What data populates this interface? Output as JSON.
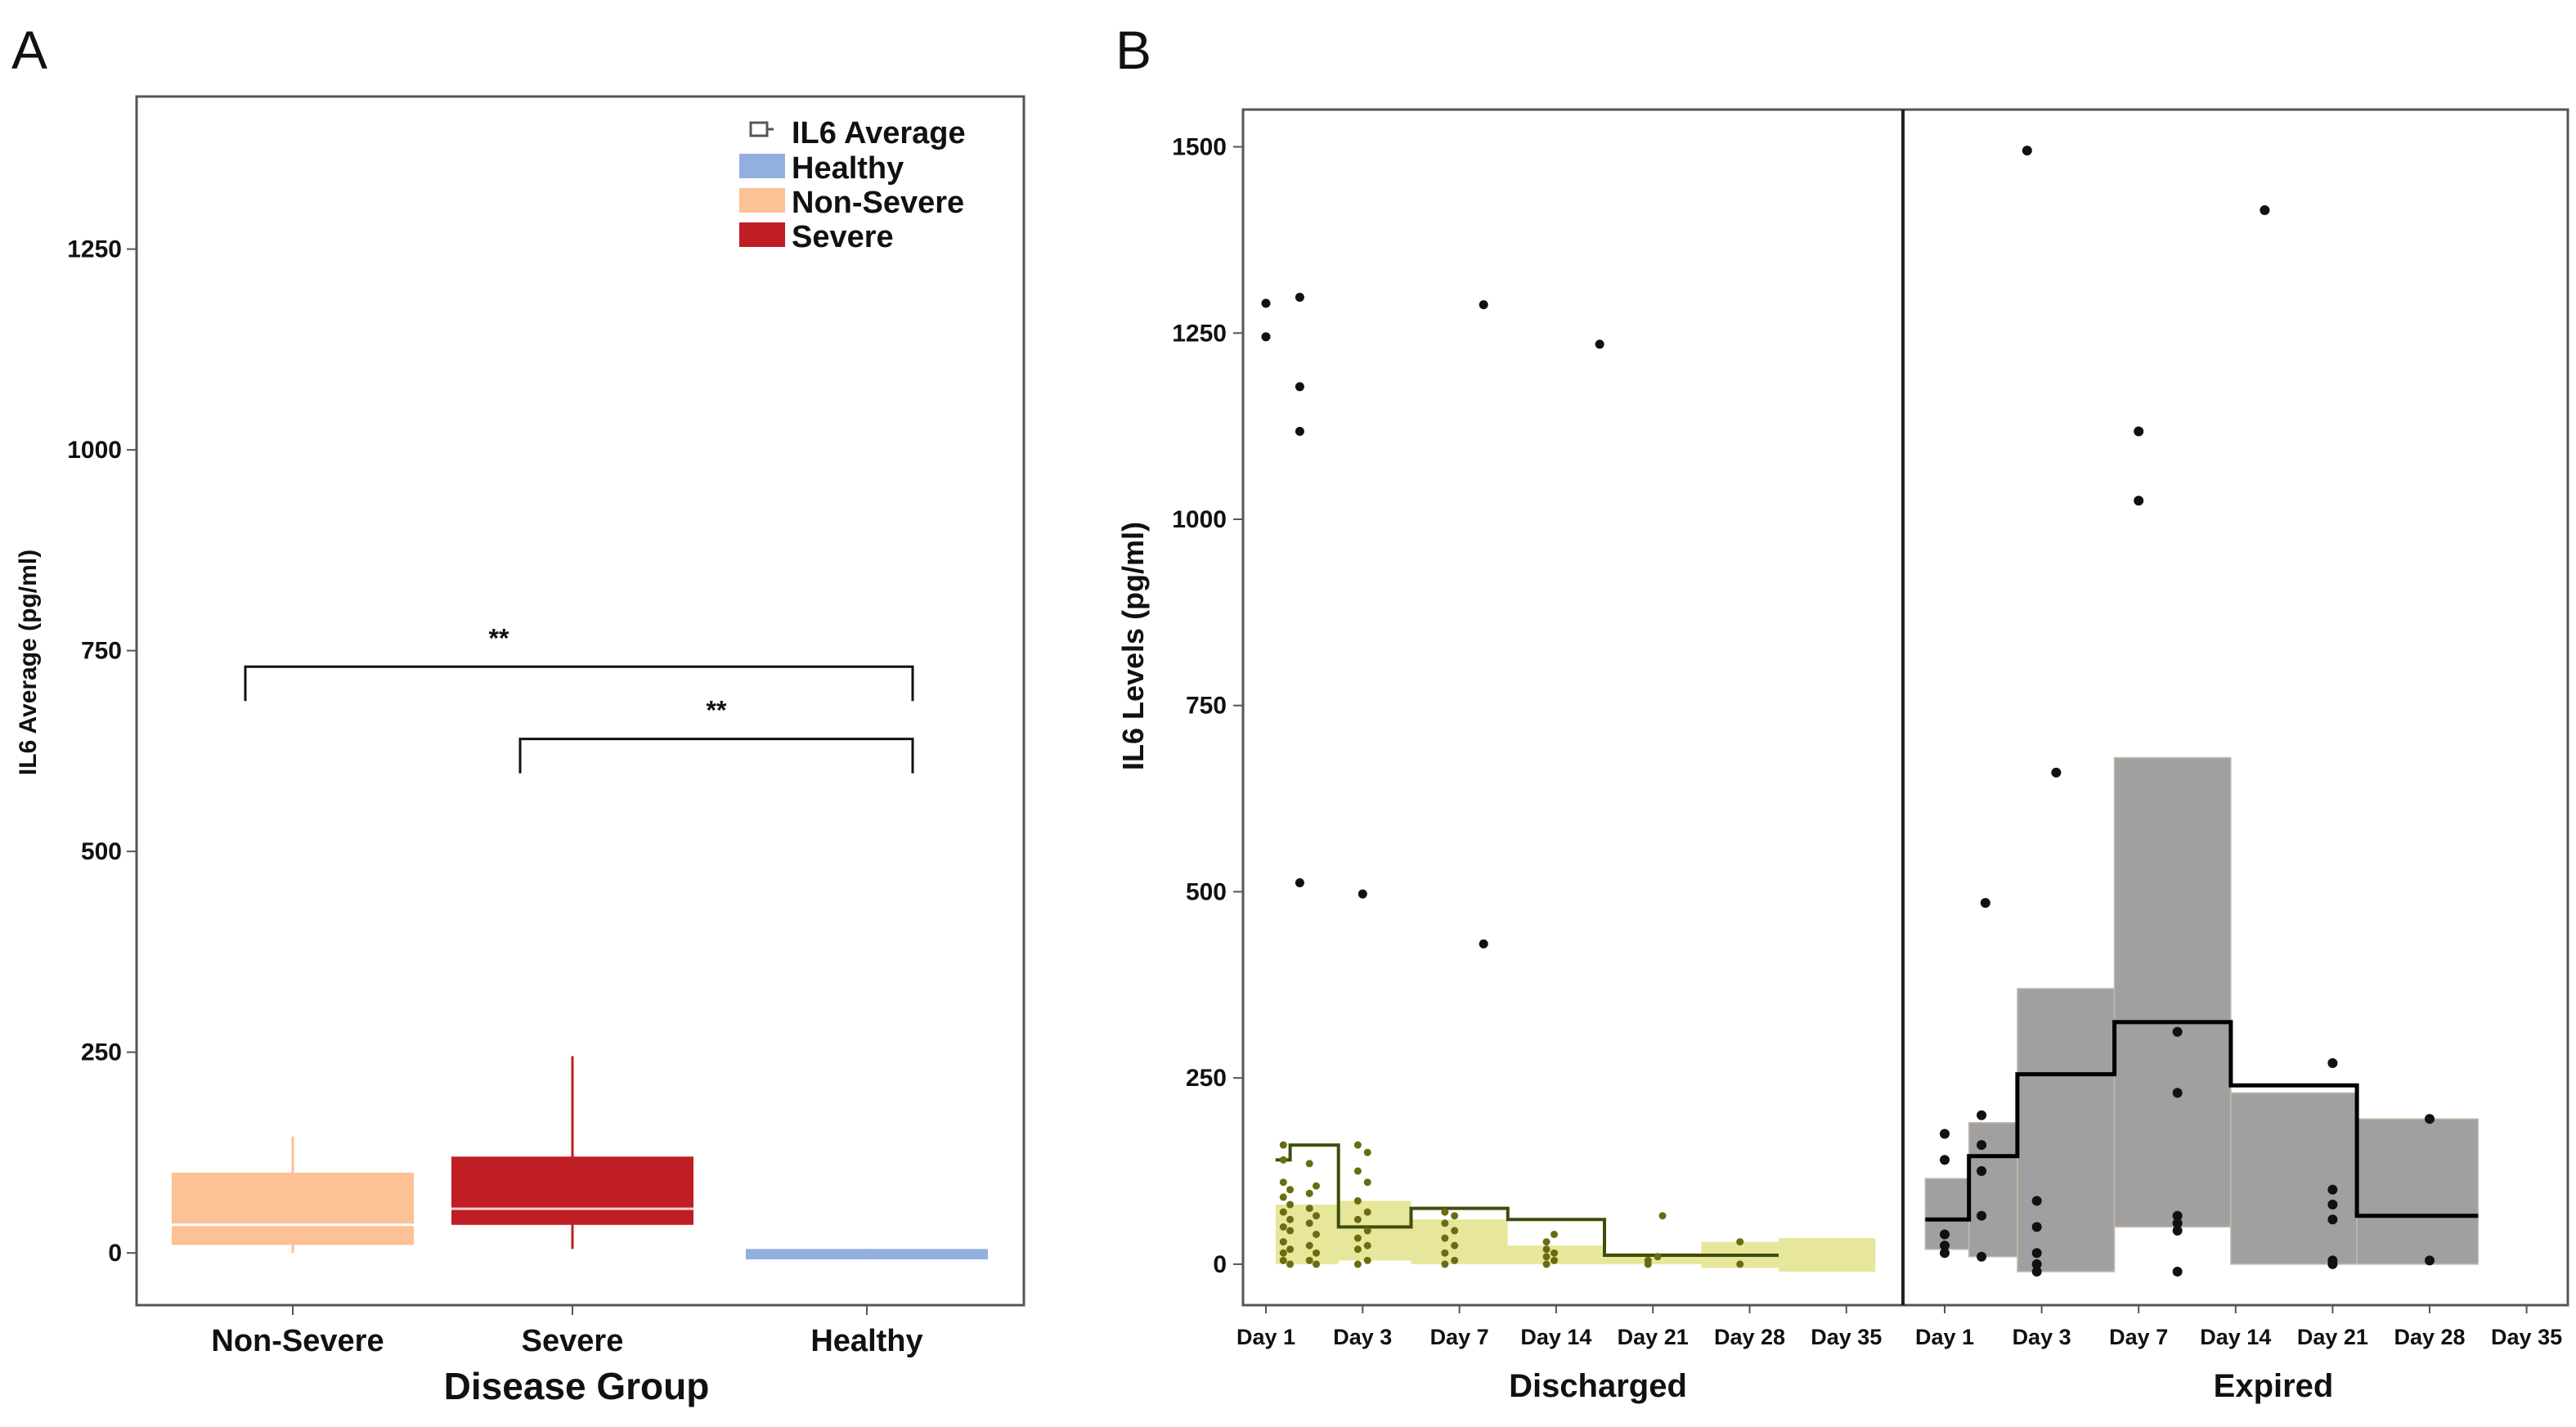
{
  "panels": [
    {
      "id": "A",
      "label": "A"
    },
    {
      "id": "B",
      "label": "B"
    }
  ],
  "colors": {
    "healthy": "#92afe0",
    "non_severe": "#fcc194",
    "severe": "#be1e24",
    "discharged_band": "#e3e38a",
    "discharged_point": "#6b6b12",
    "discharged_line": "#3f4d0c",
    "expired_band": "#a0a0a0",
    "expired_line": "#000000"
  },
  "chart_data": [
    {
      "id": "A",
      "type": "box",
      "xlabel": "Disease Group",
      "ylabel": "IL6 Average  (pg/ml)",
      "ylim": [
        -65,
        1440
      ],
      "yticks": [
        0,
        250,
        500,
        750,
        1000,
        1250
      ],
      "categories": [
        "Non-Severe",
        "Severe",
        "Healthy"
      ],
      "legend": {
        "position": "top-right",
        "title": "IL6 Average",
        "entries": [
          {
            "name": "Healthy",
            "color": "#92afe0"
          },
          {
            "name": "Non-Severe",
            "color": "#fcc194"
          },
          {
            "name": "Severe",
            "color": "#be1e24"
          }
        ]
      },
      "boxes": [
        {
          "category": "Non-Severe",
          "min": 0,
          "q1": 10,
          "median": 35,
          "q3": 100,
          "max": 145,
          "color": "#fcc194",
          "median_color": "#ffffff"
        },
        {
          "category": "Severe",
          "min": 5,
          "q1": 35,
          "median": 55,
          "q3": 120,
          "max": 245,
          "color": "#be1e24",
          "median_color": "#fbd3d3"
        },
        {
          "category": "Healthy",
          "min": -8,
          "q1": -8,
          "median": -2,
          "q3": 5,
          "max": 5,
          "color": "#92afe0",
          "median_color": "#92afe0"
        }
      ],
      "significance": [
        {
          "from": "Non-Severe",
          "to": "Healthy",
          "y": 730,
          "label": "**"
        },
        {
          "from": "Severe",
          "to": "Healthy",
          "y": 640,
          "label": "**"
        }
      ]
    },
    {
      "id": "B",
      "type": "scatter",
      "ylabel": "IL6 Levels  (pg/ml)",
      "ylim": [
        -55,
        1550
      ],
      "yticks": [
        0,
        250,
        500,
        750,
        1000,
        1250,
        1500
      ],
      "x_categories": [
        "Day 1",
        "Day 3",
        "Day 7",
        "Day 14",
        "Day 21",
        "Day 28",
        "Day 35"
      ],
      "facets": [
        {
          "name": "Discharged",
          "step_line": [
            {
              "x": 0.1,
              "y": 140
            },
            {
              "x": 0.25,
              "y": 140
            },
            {
              "x": 0.25,
              "y": 160
            },
            {
              "x": 0.75,
              "y": 160
            },
            {
              "x": 0.75,
              "y": 50
            },
            {
              "x": 1.5,
              "y": 50
            },
            {
              "x": 1.5,
              "y": 75
            },
            {
              "x": 2.5,
              "y": 75
            },
            {
              "x": 2.5,
              "y": 60
            },
            {
              "x": 3.5,
              "y": 60
            },
            {
              "x": 3.5,
              "y": 12
            },
            {
              "x": 5.3,
              "y": 12
            }
          ],
          "bands": [
            {
              "x0": 0.1,
              "x1": 0.75,
              "low": 0,
              "high": 80
            },
            {
              "x0": 0.75,
              "x1": 1.5,
              "low": 5,
              "high": 85
            },
            {
              "x0": 1.5,
              "x1": 2.5,
              "low": 0,
              "high": 60
            },
            {
              "x0": 2.5,
              "x1": 3.5,
              "low": 0,
              "high": 25
            },
            {
              "x0": 3.5,
              "x1": 4.5,
              "low": 0,
              "high": 15
            },
            {
              "x0": 4.5,
              "x1": 5.3,
              "low": -5,
              "high": 30
            },
            {
              "x0": 5.3,
              "x1": 6.3,
              "low": -10,
              "high": 35
            }
          ],
          "outliers": [
            {
              "x": 0,
              "y": 1290
            },
            {
              "x": 0,
              "y": 1245
            },
            {
              "x": 0.35,
              "y": 1298
            },
            {
              "x": 0.35,
              "y": 1178
            },
            {
              "x": 0.35,
              "y": 1118
            },
            {
              "x": 0.35,
              "y": 512
            },
            {
              "x": 1,
              "y": 497
            },
            {
              "x": 2.25,
              "y": 1288
            },
            {
              "x": 2.25,
              "y": 430
            },
            {
              "x": 3.45,
              "y": 1235
            }
          ],
          "cluster_points": [
            {
              "x": 0.18,
              "y": 5
            },
            {
              "x": 0.18,
              "y": 15
            },
            {
              "x": 0.18,
              "y": 30
            },
            {
              "x": 0.18,
              "y": 50
            },
            {
              "x": 0.18,
              "y": 70
            },
            {
              "x": 0.18,
              "y": 90
            },
            {
              "x": 0.18,
              "y": 110
            },
            {
              "x": 0.18,
              "y": 140
            },
            {
              "x": 0.18,
              "y": 160
            },
            {
              "x": 0.25,
              "y": 0
            },
            {
              "x": 0.25,
              "y": 20
            },
            {
              "x": 0.25,
              "y": 45
            },
            {
              "x": 0.25,
              "y": 60
            },
            {
              "x": 0.25,
              "y": 80
            },
            {
              "x": 0.25,
              "y": 100
            },
            {
              "x": 0.45,
              "y": 5
            },
            {
              "x": 0.45,
              "y": 25
            },
            {
              "x": 0.45,
              "y": 55
            },
            {
              "x": 0.45,
              "y": 75
            },
            {
              "x": 0.45,
              "y": 95
            },
            {
              "x": 0.45,
              "y": 135
            },
            {
              "x": 0.52,
              "y": 0
            },
            {
              "x": 0.52,
              "y": 15
            },
            {
              "x": 0.52,
              "y": 40
            },
            {
              "x": 0.52,
              "y": 65
            },
            {
              "x": 0.52,
              "y": 105
            },
            {
              "x": 0.95,
              "y": 0
            },
            {
              "x": 0.95,
              "y": 20
            },
            {
              "x": 0.95,
              "y": 35
            },
            {
              "x": 0.95,
              "y": 60
            },
            {
              "x": 0.95,
              "y": 85
            },
            {
              "x": 0.95,
              "y": 125
            },
            {
              "x": 0.95,
              "y": 160
            },
            {
              "x": 1.05,
              "y": 5
            },
            {
              "x": 1.05,
              "y": 25
            },
            {
              "x": 1.05,
              "y": 45
            },
            {
              "x": 1.05,
              "y": 70
            },
            {
              "x": 1.05,
              "y": 110
            },
            {
              "x": 1.05,
              "y": 150
            },
            {
              "x": 1.85,
              "y": 0
            },
            {
              "x": 1.85,
              "y": 15
            },
            {
              "x": 1.85,
              "y": 35
            },
            {
              "x": 1.85,
              "y": 55
            },
            {
              "x": 1.85,
              "y": 70
            },
            {
              "x": 1.95,
              "y": 5
            },
            {
              "x": 1.95,
              "y": 25
            },
            {
              "x": 1.95,
              "y": 45
            },
            {
              "x": 1.95,
              "y": 65
            },
            {
              "x": 2.9,
              "y": 0
            },
            {
              "x": 2.9,
              "y": 10
            },
            {
              "x": 2.9,
              "y": 20
            },
            {
              "x": 2.9,
              "y": 30
            },
            {
              "x": 2.98,
              "y": 5
            },
            {
              "x": 2.98,
              "y": 15
            },
            {
              "x": 2.98,
              "y": 40
            },
            {
              "x": 3.95,
              "y": 0
            },
            {
              "x": 3.95,
              "y": 5
            },
            {
              "x": 4.05,
              "y": 10
            },
            {
              "x": 4.1,
              "y": 65
            },
            {
              "x": 4.9,
              "y": 30
            },
            {
              "x": 4.9,
              "y": 0
            }
          ]
        },
        {
          "name": "Expired",
          "step_line": [
            {
              "x": -0.2,
              "y": 60
            },
            {
              "x": 0.25,
              "y": 60
            },
            {
              "x": 0.25,
              "y": 145
            },
            {
              "x": 0.75,
              "y": 145
            },
            {
              "x": 0.75,
              "y": 255
            },
            {
              "x": 1.75,
              "y": 255
            },
            {
              "x": 1.75,
              "y": 325
            },
            {
              "x": 2.95,
              "y": 325
            },
            {
              "x": 2.95,
              "y": 240
            },
            {
              "x": 4.25,
              "y": 240
            },
            {
              "x": 4.25,
              "y": 65
            },
            {
              "x": 5.5,
              "y": 65
            }
          ],
          "bands": [
            {
              "x0": -0.2,
              "x1": 0.25,
              "low": 20,
              "high": 115
            },
            {
              "x0": 0.25,
              "x1": 0.75,
              "low": 10,
              "high": 190
            },
            {
              "x0": 0.75,
              "x1": 1.75,
              "low": -10,
              "high": 370
            },
            {
              "x0": 1.75,
              "x1": 2.95,
              "low": 50,
              "high": 680
            },
            {
              "x0": 2.95,
              "x1": 4.25,
              "low": 0,
              "high": 230
            },
            {
              "x0": 4.25,
              "x1": 5.5,
              "low": 0,
              "high": 195
            }
          ],
          "points": [
            {
              "x": 0,
              "y": 175
            },
            {
              "x": 0,
              "y": 140
            },
            {
              "x": 0,
              "y": 40
            },
            {
              "x": 0,
              "y": 25
            },
            {
              "x": 0,
              "y": 15
            },
            {
              "x": 0.38,
              "y": 200
            },
            {
              "x": 0.38,
              "y": 160
            },
            {
              "x": 0.38,
              "y": 125
            },
            {
              "x": 0.38,
              "y": 65
            },
            {
              "x": 0.38,
              "y": 10
            },
            {
              "x": 0.42,
              "y": 485
            },
            {
              "x": 0.95,
              "y": 85
            },
            {
              "x": 0.95,
              "y": 50
            },
            {
              "x": 0.95,
              "y": 15
            },
            {
              "x": 0.95,
              "y": 0
            },
            {
              "x": 0.95,
              "y": -10
            },
            {
              "x": 1.15,
              "y": 660
            },
            {
              "x": 0.85,
              "y": 1495
            },
            {
              "x": 2.0,
              "y": 1118
            },
            {
              "x": 2.0,
              "y": 1025
            },
            {
              "x": 2.4,
              "y": 312
            },
            {
              "x": 2.4,
              "y": 230
            },
            {
              "x": 2.4,
              "y": 65
            },
            {
              "x": 2.4,
              "y": 55
            },
            {
              "x": 2.4,
              "y": 45
            },
            {
              "x": 2.4,
              "y": -10
            },
            {
              "x": 3.3,
              "y": 1415
            },
            {
              "x": 4.0,
              "y": 270
            },
            {
              "x": 4.0,
              "y": 100
            },
            {
              "x": 4.0,
              "y": 80
            },
            {
              "x": 4.0,
              "y": 60
            },
            {
              "x": 4.0,
              "y": 5
            },
            {
              "x": 4.0,
              "y": 0
            },
            {
              "x": 5.0,
              "y": 195
            },
            {
              "x": 5.0,
              "y": 5
            }
          ]
        }
      ]
    }
  ]
}
